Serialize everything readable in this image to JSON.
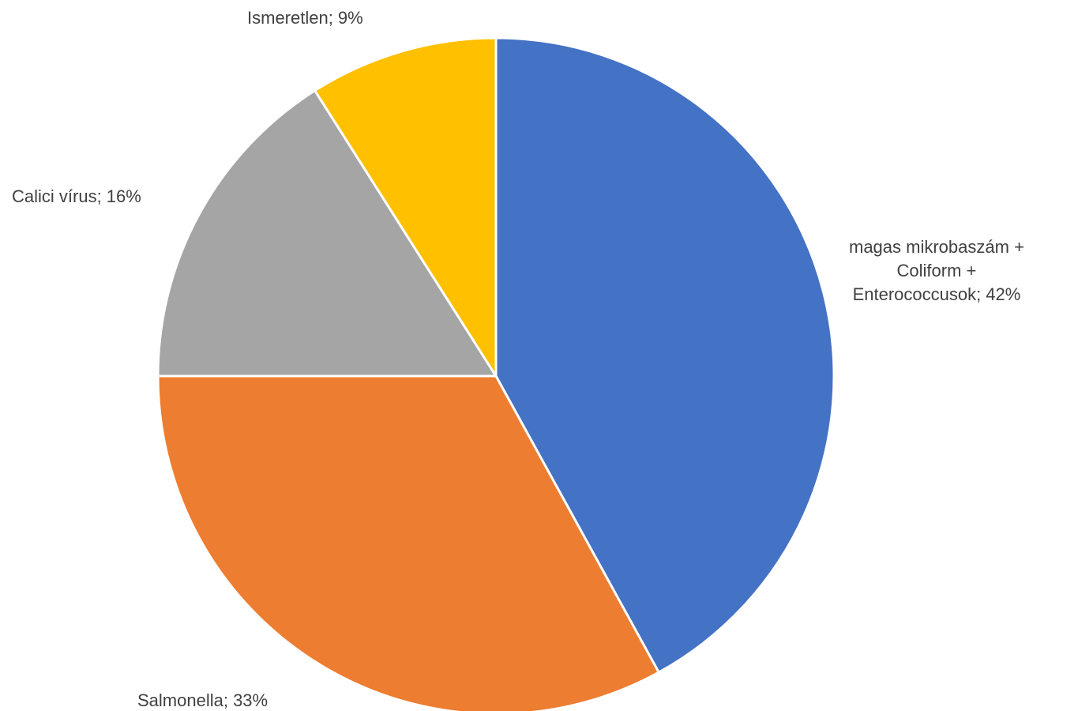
{
  "chart_data": {
    "type": "pie",
    "slices": [
      {
        "name": "magas mikrobaszám + Coliform + Enterococcusok",
        "value": 42,
        "label_lines": [
          "magas mikrobaszám +",
          "Coliform +",
          "Enterococcusok; 42%"
        ],
        "color": "#4472C4"
      },
      {
        "name": "Salmonella",
        "value": 33,
        "label_lines": [
          "Salmonella; 33%"
        ],
        "color": "#ED7D31"
      },
      {
        "name": "Calici vírus",
        "value": 16,
        "label_lines": [
          "Calici vírus; 16%"
        ],
        "color": "#A5A5A5"
      },
      {
        "name": "Ismeretlen",
        "value": 9,
        "label_lines": [
          "Ismeretlen; 9%"
        ],
        "color": "#FFC000"
      }
    ],
    "start_angle_deg": 0,
    "direction": "clockwise",
    "slice_border_color": "#FFFFFF",
    "label_color": "#404040"
  }
}
